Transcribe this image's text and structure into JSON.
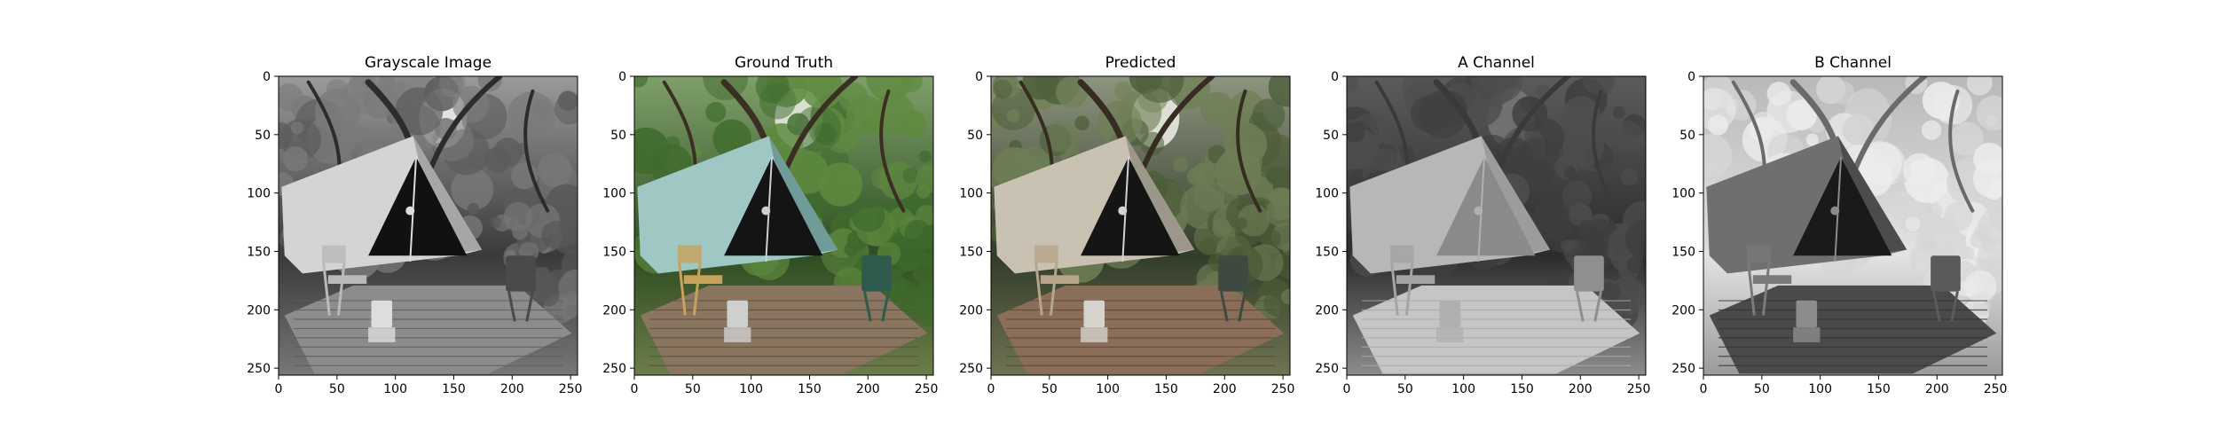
{
  "panels": [
    {
      "id": "grayscale",
      "title": "Grayscale Image",
      "mode": "gray"
    },
    {
      "id": "ground-truth",
      "title": "Ground Truth",
      "mode": "color"
    },
    {
      "id": "predicted",
      "title": "Predicted",
      "mode": "desat"
    },
    {
      "id": "a-channel",
      "title": "A Channel",
      "mode": "achan"
    },
    {
      "id": "b-channel",
      "title": "B Channel",
      "mode": "bchan"
    }
  ],
  "axes": {
    "x_ticks": [
      "0",
      "50",
      "100",
      "150",
      "200",
      "250"
    ],
    "y_ticks": [
      "0",
      "50",
      "100",
      "150",
      "200",
      "250"
    ],
    "extent": [
      0,
      256
    ]
  },
  "colors": {
    "background": "#ffffff",
    "axis": "#000000",
    "tent_teal": "#9fc7c4",
    "foliage": "#3f6b2c",
    "deck": "#8a7560"
  }
}
